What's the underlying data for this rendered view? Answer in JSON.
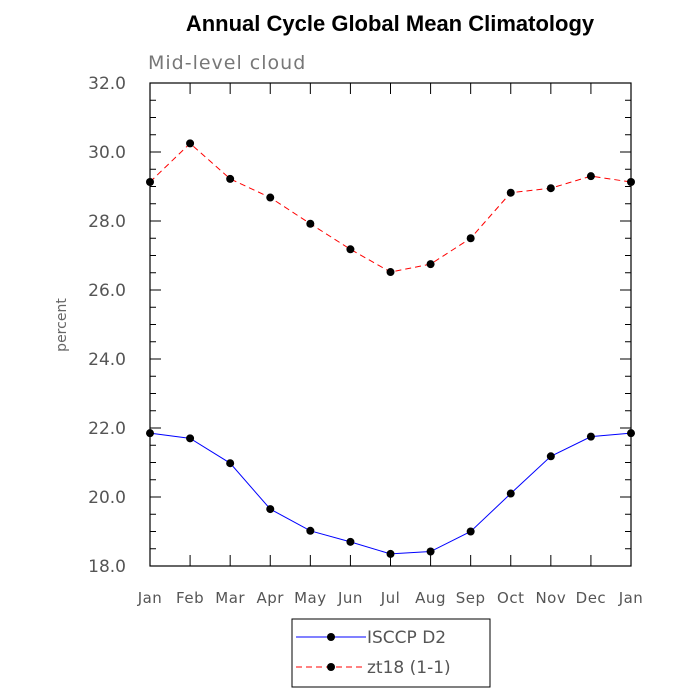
{
  "chart_data": {
    "type": "line",
    "title": "Annual Cycle Global Mean Climatology",
    "subtitle": "Mid-level cloud",
    "xlabel": "",
    "ylabel": "percent",
    "ylim": [
      18.0,
      32.0
    ],
    "yticks": [
      "18.0",
      "20.0",
      "22.0",
      "24.0",
      "26.0",
      "28.0",
      "30.0",
      "32.0"
    ],
    "categories": [
      "Jan",
      "Feb",
      "Mar",
      "Apr",
      "May",
      "Jun",
      "Jul",
      "Aug",
      "Sep",
      "Oct",
      "Nov",
      "Dec",
      "Jan"
    ],
    "series": [
      {
        "name": "ISCCP D2",
        "color": "#0000ff",
        "dash": "solid",
        "values": [
          21.85,
          21.7,
          20.98,
          19.65,
          19.02,
          18.7,
          18.35,
          18.42,
          19.0,
          20.1,
          21.18,
          21.75,
          21.85
        ]
      },
      {
        "name": "zt18 (1-1)",
        "color": "#ff0000",
        "dash": "dashed",
        "values": [
          29.13,
          30.25,
          29.22,
          28.68,
          27.92,
          27.18,
          26.52,
          26.75,
          27.5,
          28.82,
          28.95,
          29.3,
          29.13
        ]
      }
    ]
  }
}
